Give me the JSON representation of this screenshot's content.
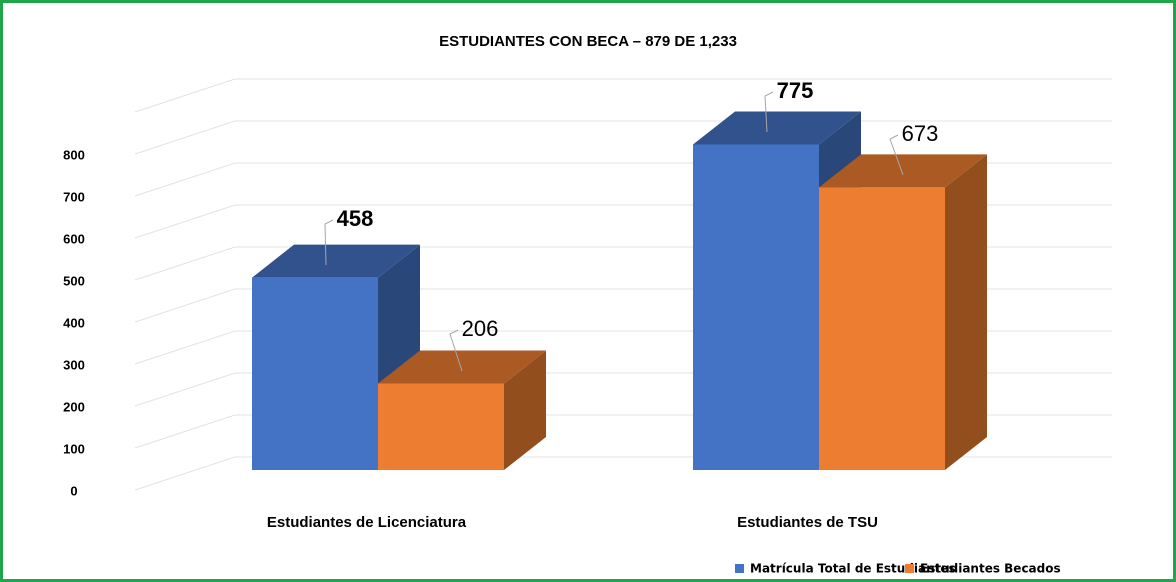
{
  "chart_data": {
    "type": "bar3d",
    "title": "ESTUDIANTES CON BECA – 879 DE 1,233",
    "categories": [
      "Estudiantes de Licenciatura",
      "Estudiantes de TSU"
    ],
    "series": [
      {
        "name": "Matrícula Total de Estudiantes",
        "color": "#4472c4",
        "values": [
          458,
          775
        ]
      },
      {
        "name": "Estudiantes Becados",
        "color": "#ed7d31",
        "values": [
          206,
          673
        ]
      }
    ],
    "ylim": [
      0,
      900
    ],
    "yticks": [
      0,
      100,
      200,
      300,
      400,
      500,
      600,
      700,
      800
    ],
    "grid": true,
    "legend": "bottom"
  }
}
